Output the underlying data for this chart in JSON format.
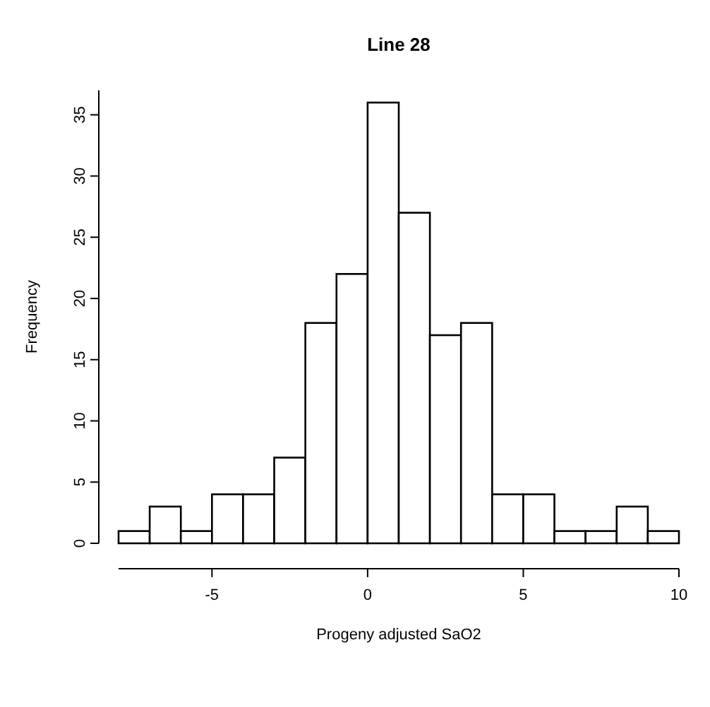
{
  "chart_data": {
    "type": "histogram",
    "title": "Line 28",
    "xlabel": "Progeny adjusted SaO2",
    "ylabel": "Frequency",
    "bins": [
      -8,
      -7,
      -6,
      -5,
      -4,
      -3,
      -2,
      -1,
      0,
      1,
      2,
      3,
      4,
      5,
      6,
      7,
      8,
      9,
      10
    ],
    "values": [
      1,
      3,
      1,
      4,
      4,
      7,
      18,
      22,
      36,
      27,
      17,
      18,
      4,
      4,
      1,
      1,
      3,
      1
    ],
    "color": "#ffffff",
    "xlim": [
      -8,
      10
    ],
    "xticks": [
      -5,
      0,
      5,
      10
    ],
    "ylim": [
      0,
      37
    ],
    "yticks": [
      0,
      5,
      10,
      15,
      20,
      25,
      30,
      35
    ],
    "grid": false
  }
}
